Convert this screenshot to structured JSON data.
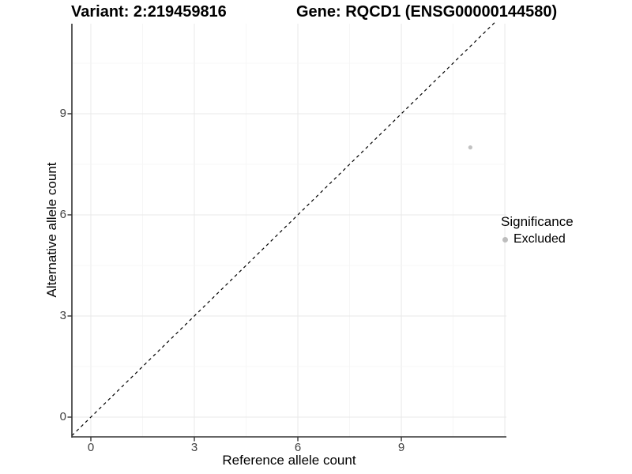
{
  "titles": {
    "variant": "Variant: 2:219459816",
    "gene": "Gene: RQCD1 (ENSG00000144580)"
  },
  "axes": {
    "x_label": "Reference allele count",
    "y_label": "Alternative allele count",
    "x_tick_labels": [
      "0",
      "3",
      "6",
      "9"
    ],
    "y_tick_labels": [
      "0",
      "3",
      "6",
      "9"
    ]
  },
  "legend": {
    "title": "Significance",
    "items": [
      {
        "label": "Excluded",
        "color": "#bdbdbd"
      }
    ]
  },
  "chart_data": {
    "type": "scatter",
    "title": "Variant: 2:219459816   Gene: RQCD1 (ENSG00000144580)",
    "xlabel": "Reference allele count",
    "ylabel": "Alternative allele count",
    "xlim": [
      -0.55,
      12.1
    ],
    "ylim": [
      -0.6,
      11.7
    ],
    "x_major_ticks": [
      0,
      3,
      6,
      9
    ],
    "y_major_ticks": [
      0,
      3,
      6,
      9
    ],
    "major_tick_step": 3,
    "grid": "major+minor",
    "legend_position": "right",
    "series": [
      {
        "name": "Excluded",
        "color": "#c2c2c2",
        "points": [
          {
            "x": 11,
            "y": 8
          }
        ]
      }
    ],
    "reference_line": {
      "type": "identity",
      "style": "dashed",
      "color": "#000000"
    }
  },
  "colors": {
    "axis_line": "#333333",
    "grid_major": "#e8e8e8",
    "grid_minor": "#f4f4f4",
    "tick_text": "#404040",
    "point": "#c2c2c2",
    "legend_dot": "#bdbdbd",
    "dashed_line": "#000000"
  }
}
